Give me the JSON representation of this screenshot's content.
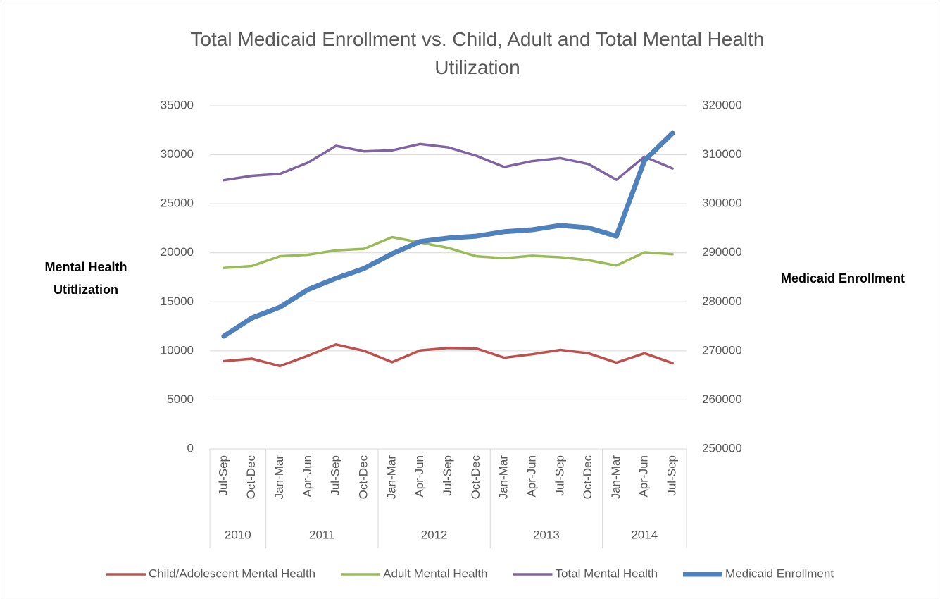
{
  "chart_data": {
    "type": "line",
    "title": "Total Medicaid Enrollment vs. Child, Adult and Total Mental Health Utilization",
    "y_label": "Mental Health Utitlization",
    "y2_label": "Medicaid Enrollment",
    "categories": [
      "Jul-Sep",
      "Oct-Dec",
      "Jan-Mar",
      "Apr-Jun",
      "Jul-Sep",
      "Oct-Dec",
      "Jan-Mar",
      "Apr-Jun",
      "Jul-Sep",
      "Oct-Dec",
      "Jan-Mar",
      "Apr-Jun",
      "Jul-Sep",
      "Oct-Dec",
      "Jan-Mar",
      "Apr-Jun",
      "Jul-Sep"
    ],
    "category_groups": [
      {
        "label": "2010",
        "count": 2
      },
      {
        "label": "2011",
        "count": 4
      },
      {
        "label": "2012",
        "count": 4
      },
      {
        "label": "2013",
        "count": 4
      },
      {
        "label": "2014",
        "count": 3
      }
    ],
    "series": [
      {
        "name": "Child/Adolescent Mental Health",
        "color": "#c0504d",
        "values": [
          8950,
          9200,
          8450,
          9500,
          10650,
          10000,
          8850,
          10050,
          10300,
          10250,
          9300,
          9650,
          10100,
          9750,
          8800,
          9750,
          8750
        ]
      },
      {
        "name": "Adult Mental Health",
        "color": "#9bbb59",
        "values": [
          18450,
          18650,
          19650,
          19800,
          20250,
          20400,
          21600,
          21050,
          20500,
          19650,
          19450,
          19700,
          19550,
          19250,
          18700,
          20050,
          19850
        ]
      },
      {
        "name": "Total Mental Health",
        "color": "#8064a2",
        "values": [
          27400,
          27850,
          28050,
          29200,
          30900,
          30350,
          30450,
          31100,
          30750,
          29900,
          28750,
          29350,
          29650,
          29050,
          27450,
          29800,
          28600
        ]
      },
      {
        "name": "Medicaid Enrollment",
        "color": "#4f81bd",
        "axis": "y2",
        "values": [
          273000,
          276700,
          278900,
          282500,
          284800,
          286800,
          289800,
          292300,
          293000,
          293400,
          294300,
          294700,
          295600,
          295100,
          293400,
          308800,
          314400
        ]
      }
    ],
    "ylim": [
      0,
      35000
    ],
    "yticks": [
      0,
      5000,
      10000,
      15000,
      20000,
      25000,
      30000,
      35000
    ],
    "y2lim": [
      250000,
      320000
    ],
    "y2ticks": [
      250000,
      260000,
      270000,
      280000,
      290000,
      300000,
      310000,
      320000
    ],
    "grid": true,
    "legend": "bottom"
  }
}
